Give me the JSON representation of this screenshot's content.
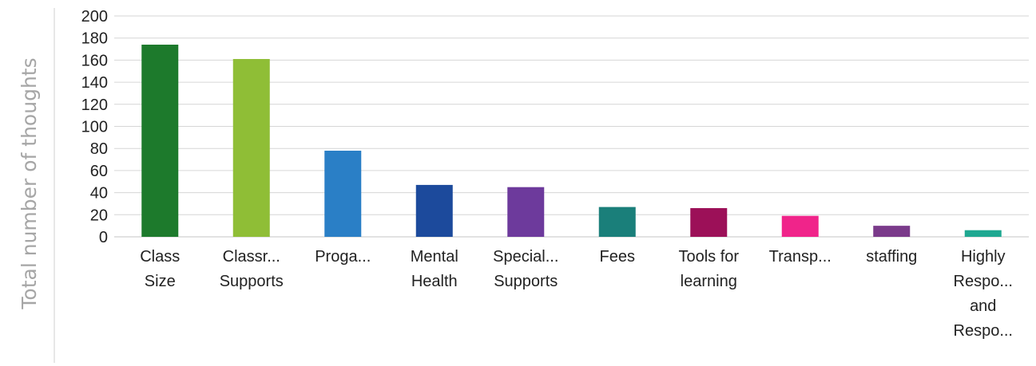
{
  "chart_data": {
    "type": "bar",
    "title": "",
    "xlabel": "",
    "ylabel": "Total number of thoughts",
    "ylim": [
      0,
      200
    ],
    "yticks": [
      0,
      20,
      40,
      60,
      80,
      100,
      120,
      140,
      160,
      180,
      200
    ],
    "grid": true,
    "legend": "none",
    "categories": [
      [
        "Class",
        "Size"
      ],
      [
        "Classr...",
        "Supports"
      ],
      [
        "Proga..."
      ],
      [
        "Mental",
        "Health"
      ],
      [
        "Special...",
        "Supports"
      ],
      [
        "Fees"
      ],
      [
        "Tools for",
        "learning"
      ],
      [
        "Transp..."
      ],
      [
        "staffing"
      ],
      [
        "Highly",
        "Respo...",
        "and",
        "Respo..."
      ]
    ],
    "values": [
      174,
      161,
      78,
      47,
      45,
      27,
      26,
      19,
      10,
      6
    ],
    "colors": [
      "#1d7a2c",
      "#8fbe36",
      "#2a7fc6",
      "#1c4a9c",
      "#6d3a9c",
      "#1a7f7a",
      "#9c1058",
      "#f0248a",
      "#7a3a8a",
      "#1fa891"
    ]
  }
}
